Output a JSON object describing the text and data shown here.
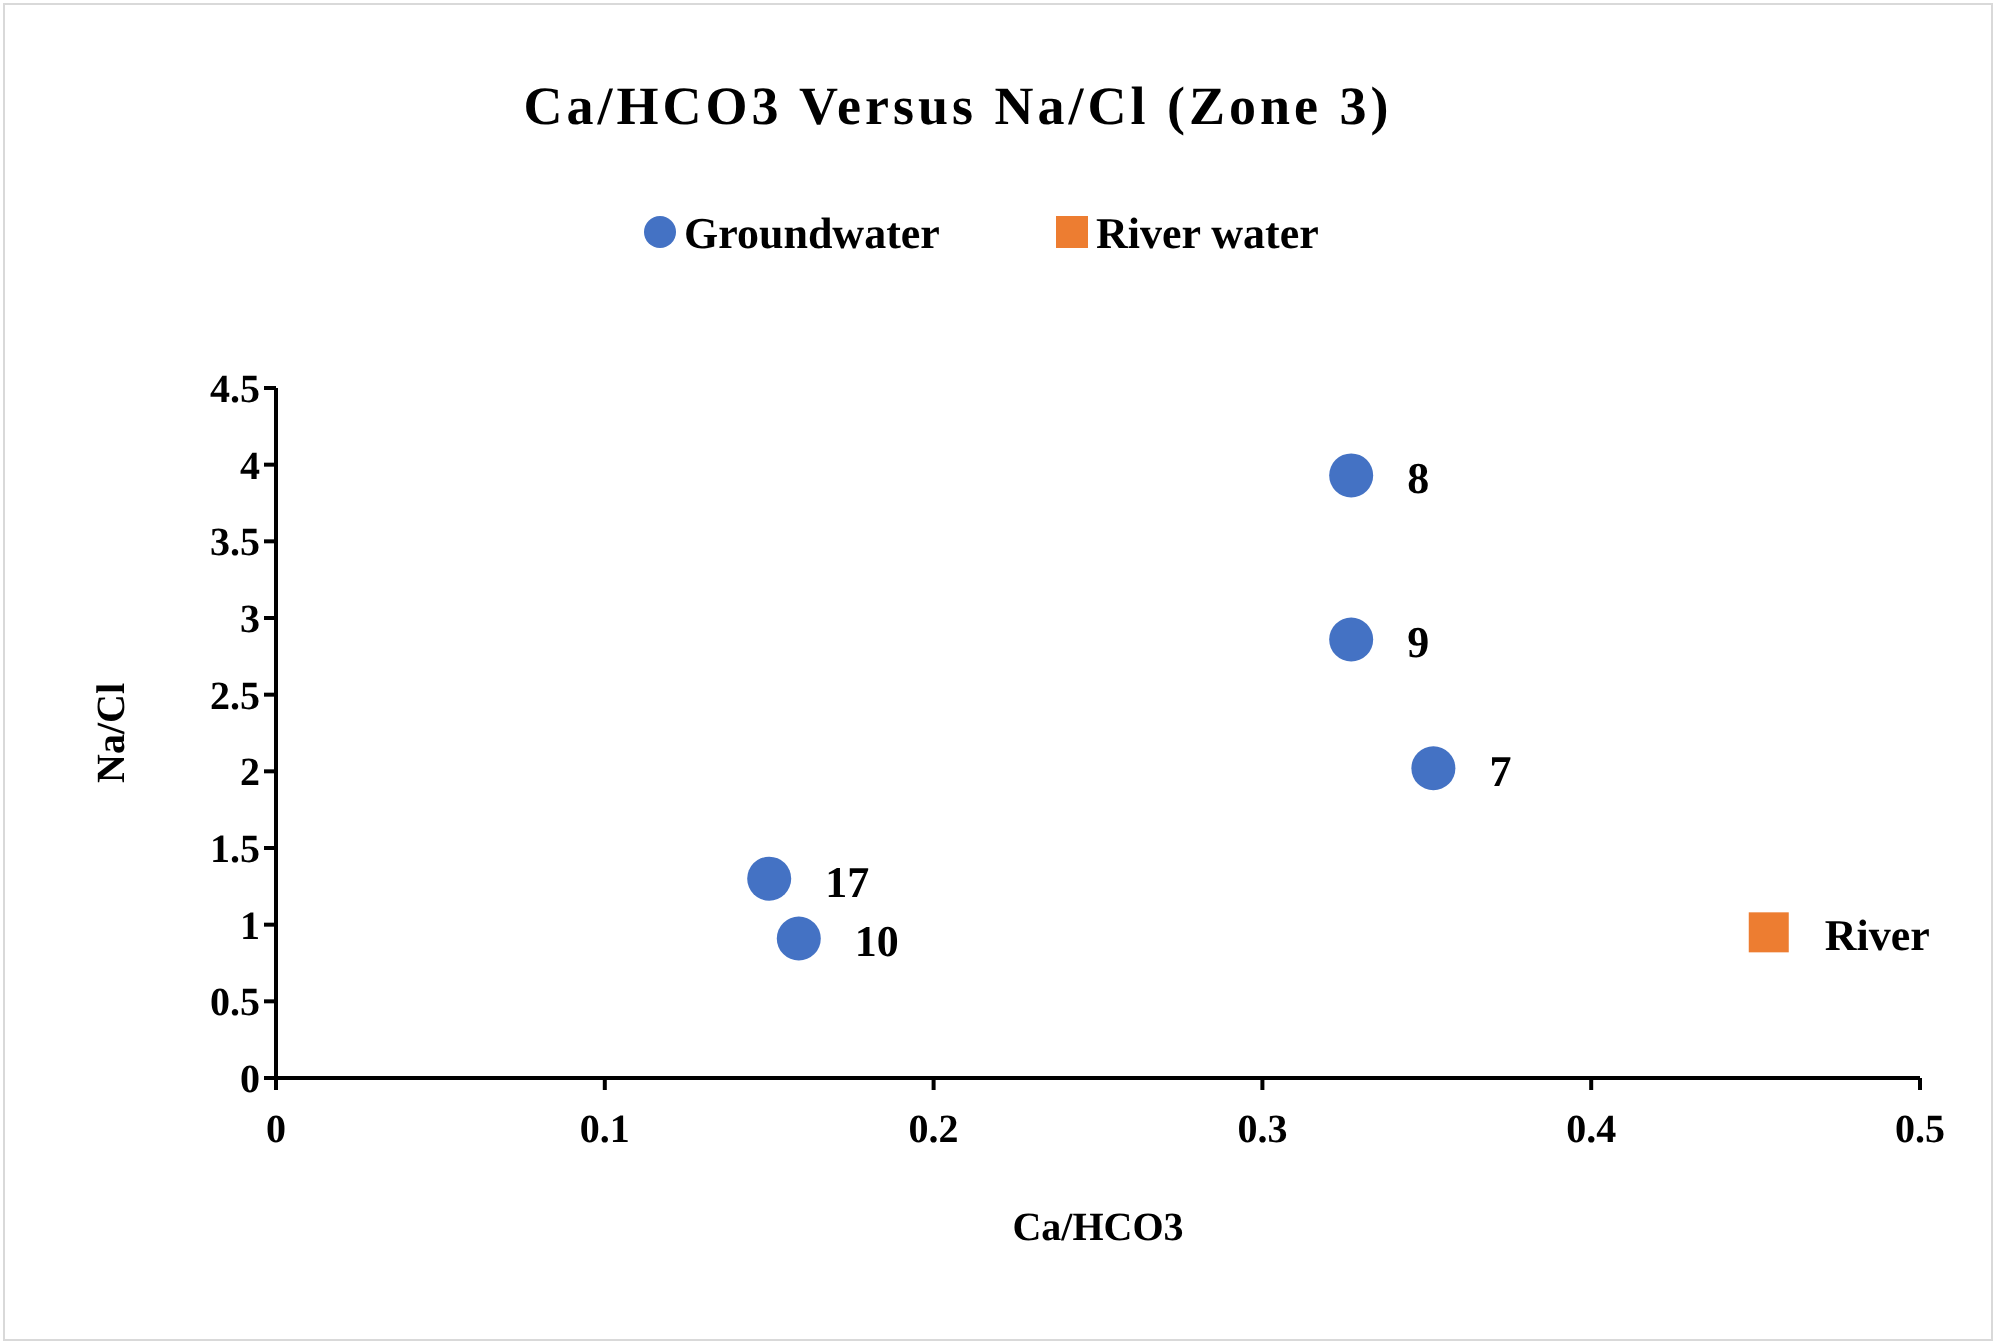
{
  "chart_data": {
    "type": "scatter",
    "title": "Ca/HCO3 Versus Na/Cl (Zone 3)",
    "xlabel": "Ca/HCO3",
    "ylabel": "Na/Cl",
    "series": [
      {
        "name": "Groundwater",
        "color": "#4472c4",
        "marker": "circle",
        "x": [
          0.352,
          0.327,
          0.327,
          0.159,
          0.15
        ],
        "values": [
          2.02,
          3.93,
          2.86,
          0.91,
          1.3
        ]
      },
      {
        "name": "River water",
        "color": "#ed7d31",
        "marker": "square",
        "x": [
          0.454
        ],
        "values": [
          0.95
        ]
      }
    ],
    "annotations": [
      {
        "text": "7",
        "x": 0.352,
        "y": 2.02
      },
      {
        "text": "8",
        "x": 0.327,
        "y": 3.93
      },
      {
        "text": "9",
        "x": 0.327,
        "y": 2.86
      },
      {
        "text": "10",
        "x": 0.159,
        "y": 0.91
      },
      {
        "text": "17",
        "x": 0.15,
        "y": 1.3
      },
      {
        "text": "River",
        "x": 0.454,
        "y": 0.95
      }
    ],
    "xlim": [
      0,
      0.5
    ],
    "xticks": [
      0,
      0.1,
      0.2,
      0.3,
      0.4,
      0.5
    ],
    "ylim": [
      0,
      4.5
    ],
    "yticks": [
      0,
      0.5,
      1,
      1.5,
      2,
      2.5,
      3,
      3.5,
      4,
      4.5
    ],
    "legend": "top",
    "grid": false
  }
}
